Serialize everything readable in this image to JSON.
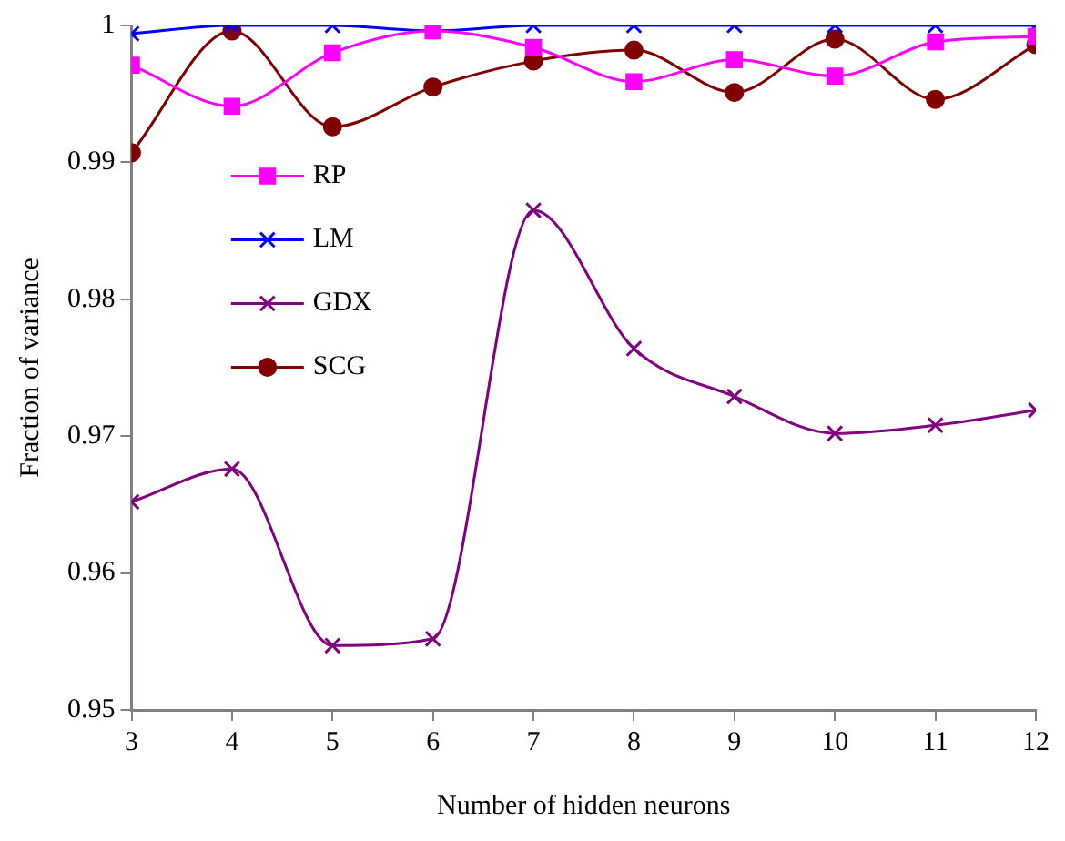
{
  "chart_data": {
    "type": "line",
    "xlabel": "Number of hidden neurons",
    "ylabel": "Fraction of variance",
    "x": [
      3,
      4,
      5,
      6,
      7,
      8,
      9,
      10,
      11,
      12
    ],
    "xlim": [
      3,
      12
    ],
    "xticks": [
      3,
      4,
      5,
      6,
      7,
      8,
      9,
      10,
      11,
      12
    ],
    "ylim": [
      0.95,
      1
    ],
    "yticks": [
      0.95,
      0.96,
      0.97,
      0.98,
      0.99,
      1
    ],
    "grid": false,
    "legend": "left",
    "series": [
      {
        "name": "RP",
        "color": "#ff00ff",
        "marker": "square",
        "values": [
          0.9971,
          0.9941,
          0.998,
          0.9996,
          0.9984,
          0.9959,
          0.9975,
          0.9963,
          0.9988,
          0.9992
        ]
      },
      {
        "name": "LM",
        "color": "#0000ff",
        "marker": "cross",
        "values": [
          0.9994,
          1,
          1,
          0.9996,
          1,
          1,
          1,
          1,
          1,
          1
        ]
      },
      {
        "name": "GDX",
        "color": "#800080",
        "marker": "cross",
        "values": [
          0.9652,
          0.9676,
          0.9547,
          0.9552,
          0.9865,
          0.9764,
          0.9729,
          0.9702,
          0.9708,
          0.9719
        ]
      },
      {
        "name": "SCG",
        "color": "#800000",
        "marker": "circle",
        "values": [
          0.9907,
          0.9996,
          0.9926,
          0.9955,
          0.9974,
          0.9982,
          0.9951,
          0.999,
          0.9946,
          0.9986
        ]
      }
    ]
  }
}
